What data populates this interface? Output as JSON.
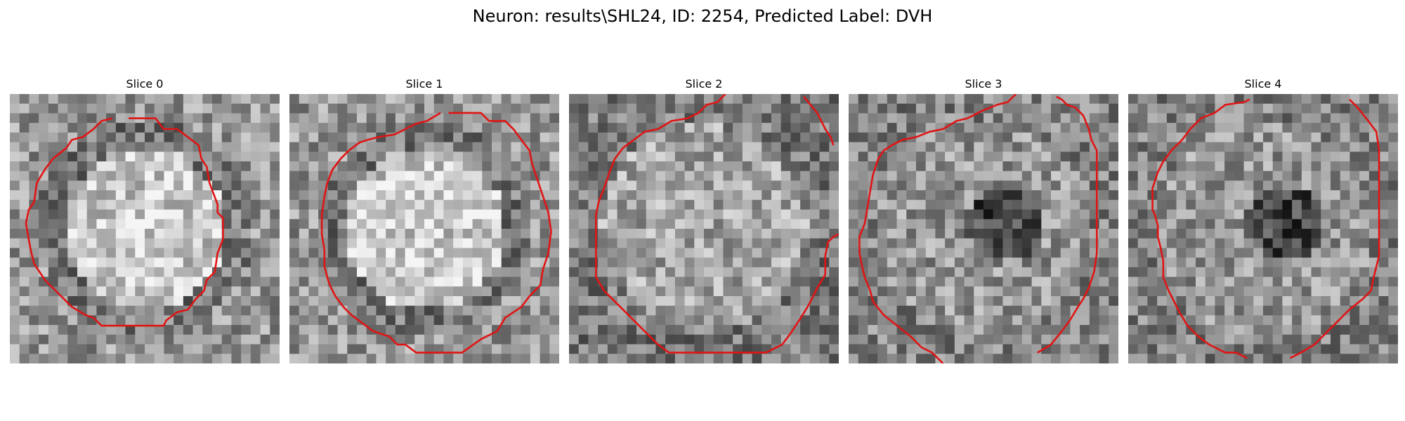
{
  "figure": {
    "title": "Neuron: results\\SHL24, ID: 2254, Predicted Label: DVH",
    "contour_color": "#e01414"
  },
  "panels": [
    {
      "title": "Slice 0",
      "pattern": "bright-center",
      "contour": [
        [
          0.44,
          0.09
        ],
        [
          0.54,
          0.09
        ],
        [
          0.57,
          0.13
        ],
        [
          0.62,
          0.13
        ],
        [
          0.7,
          0.19
        ],
        [
          0.71,
          0.24
        ],
        [
          0.73,
          0.27
        ],
        [
          0.74,
          0.33
        ],
        [
          0.77,
          0.41
        ],
        [
          0.77,
          0.44
        ],
        [
          0.79,
          0.46
        ],
        [
          0.79,
          0.54
        ],
        [
          0.77,
          0.59
        ],
        [
          0.76,
          0.66
        ],
        [
          0.73,
          0.69
        ],
        [
          0.72,
          0.73
        ],
        [
          0.69,
          0.76
        ],
        [
          0.66,
          0.8
        ],
        [
          0.62,
          0.81
        ],
        [
          0.58,
          0.84
        ],
        [
          0.57,
          0.86
        ],
        [
          0.51,
          0.86
        ],
        [
          0.34,
          0.86
        ],
        [
          0.31,
          0.83
        ],
        [
          0.28,
          0.82
        ],
        [
          0.23,
          0.79
        ],
        [
          0.2,
          0.76
        ],
        [
          0.16,
          0.72
        ],
        [
          0.13,
          0.69
        ],
        [
          0.09,
          0.63
        ],
        [
          0.08,
          0.59
        ],
        [
          0.07,
          0.54
        ],
        [
          0.06,
          0.48
        ],
        [
          0.07,
          0.43
        ],
        [
          0.09,
          0.4
        ],
        [
          0.1,
          0.33
        ],
        [
          0.13,
          0.28
        ],
        [
          0.16,
          0.24
        ],
        [
          0.21,
          0.2
        ],
        [
          0.23,
          0.17
        ],
        [
          0.27,
          0.16
        ],
        [
          0.31,
          0.13
        ],
        [
          0.34,
          0.1
        ],
        [
          0.38,
          0.09
        ]
      ]
    },
    {
      "title": "Slice 1",
      "pattern": "bright-center",
      "contour": [
        [
          0.59,
          0.07
        ],
        [
          0.71,
          0.07
        ],
        [
          0.74,
          0.1
        ],
        [
          0.8,
          0.1
        ],
        [
          0.83,
          0.13
        ],
        [
          0.86,
          0.17
        ],
        [
          0.89,
          0.21
        ],
        [
          0.9,
          0.26
        ],
        [
          0.92,
          0.32
        ],
        [
          0.94,
          0.38
        ],
        [
          0.96,
          0.44
        ],
        [
          0.97,
          0.51
        ],
        [
          0.96,
          0.59
        ],
        [
          0.94,
          0.65
        ],
        [
          0.93,
          0.71
        ],
        [
          0.89,
          0.75
        ],
        [
          0.86,
          0.79
        ],
        [
          0.8,
          0.83
        ],
        [
          0.77,
          0.88
        ],
        [
          0.71,
          0.91
        ],
        [
          0.64,
          0.96
        ],
        [
          0.47,
          0.96
        ],
        [
          0.43,
          0.93
        ],
        [
          0.4,
          0.93
        ],
        [
          0.37,
          0.9
        ],
        [
          0.31,
          0.88
        ],
        [
          0.27,
          0.85
        ],
        [
          0.23,
          0.82
        ],
        [
          0.2,
          0.79
        ],
        [
          0.17,
          0.75
        ],
        [
          0.15,
          0.71
        ],
        [
          0.14,
          0.68
        ],
        [
          0.13,
          0.64
        ],
        [
          0.13,
          0.58
        ],
        [
          0.12,
          0.52
        ],
        [
          0.12,
          0.45
        ],
        [
          0.13,
          0.38
        ],
        [
          0.14,
          0.33
        ],
        [
          0.16,
          0.28
        ],
        [
          0.19,
          0.24
        ],
        [
          0.22,
          0.21
        ],
        [
          0.26,
          0.18
        ],
        [
          0.29,
          0.17
        ],
        [
          0.33,
          0.16
        ],
        [
          0.39,
          0.15
        ],
        [
          0.43,
          0.13
        ],
        [
          0.47,
          0.11
        ],
        [
          0.51,
          0.1
        ],
        [
          0.56,
          0.07
        ]
      ]
    },
    {
      "title": "Slice 2",
      "pattern": "mixed",
      "contour": [
        [
          0.58,
          0.0
        ],
        [
          0.55,
          0.03
        ],
        [
          0.51,
          0.04
        ],
        [
          0.48,
          0.07
        ],
        [
          0.44,
          0.09
        ],
        [
          0.38,
          0.1
        ],
        [
          0.33,
          0.13
        ],
        [
          0.28,
          0.14
        ],
        [
          0.24,
          0.17
        ],
        [
          0.2,
          0.2
        ],
        [
          0.17,
          0.24
        ],
        [
          0.15,
          0.29
        ],
        [
          0.13,
          0.35
        ],
        [
          0.11,
          0.4
        ],
        [
          0.1,
          0.45
        ],
        [
          0.1,
          0.52
        ],
        [
          0.1,
          0.6
        ],
        [
          0.1,
          0.68
        ],
        [
          0.13,
          0.73
        ],
        [
          0.17,
          0.77
        ],
        [
          0.21,
          0.81
        ],
        [
          0.25,
          0.85
        ],
        [
          0.29,
          0.89
        ],
        [
          0.33,
          0.93
        ],
        [
          0.37,
          0.96
        ],
        [
          0.42,
          0.96
        ],
        [
          0.73,
          0.96
        ],
        [
          0.79,
          0.93
        ],
        [
          0.82,
          0.89
        ],
        [
          0.86,
          0.83
        ],
        [
          0.89,
          0.78
        ],
        [
          0.92,
          0.72
        ],
        [
          0.95,
          0.67
        ],
        [
          0.95,
          0.6
        ],
        [
          0.96,
          0.55
        ],
        [
          0.98,
          0.53
        ],
        [
          1.0,
          0.52
        ]
      ],
      "contour2": [
        [
          0.87,
          0.01
        ],
        [
          0.92,
          0.07
        ],
        [
          0.95,
          0.13
        ],
        [
          0.97,
          0.16
        ],
        [
          0.98,
          0.19
        ]
      ]
    },
    {
      "title": "Slice 3",
      "pattern": "dark-center",
      "contour": [
        [
          0.7,
          0.96
        ],
        [
          0.75,
          0.93
        ],
        [
          0.79,
          0.88
        ],
        [
          0.82,
          0.84
        ],
        [
          0.85,
          0.79
        ],
        [
          0.87,
          0.76
        ],
        [
          0.89,
          0.72
        ],
        [
          0.91,
          0.66
        ],
        [
          0.92,
          0.59
        ],
        [
          0.92,
          0.5
        ],
        [
          0.92,
          0.4
        ],
        [
          0.92,
          0.3
        ],
        [
          0.92,
          0.21
        ],
        [
          0.9,
          0.17
        ],
        [
          0.89,
          0.13
        ],
        [
          0.87,
          0.08
        ],
        [
          0.84,
          0.05
        ],
        [
          0.81,
          0.04
        ],
        [
          0.79,
          0.02
        ],
        [
          0.77,
          0.01
        ]
      ],
      "contour2": [
        [
          0.62,
          0.0
        ],
        [
          0.59,
          0.03
        ],
        [
          0.55,
          0.04
        ],
        [
          0.5,
          0.06
        ],
        [
          0.44,
          0.09
        ],
        [
          0.4,
          0.1
        ],
        [
          0.35,
          0.13
        ],
        [
          0.3,
          0.14
        ],
        [
          0.25,
          0.16
        ],
        [
          0.2,
          0.17
        ],
        [
          0.16,
          0.19
        ],
        [
          0.13,
          0.21
        ],
        [
          0.11,
          0.24
        ],
        [
          0.1,
          0.27
        ],
        [
          0.09,
          0.3
        ],
        [
          0.08,
          0.36
        ],
        [
          0.07,
          0.42
        ],
        [
          0.06,
          0.48
        ],
        [
          0.04,
          0.53
        ],
        [
          0.04,
          0.59
        ],
        [
          0.05,
          0.64
        ],
        [
          0.06,
          0.68
        ],
        [
          0.08,
          0.73
        ],
        [
          0.09,
          0.77
        ],
        [
          0.13,
          0.82
        ],
        [
          0.18,
          0.86
        ],
        [
          0.23,
          0.9
        ],
        [
          0.27,
          0.94
        ],
        [
          0.31,
          0.96
        ],
        [
          0.35,
          1.0
        ]
      ]
    },
    {
      "title": "Slice 4",
      "pattern": "dark-center",
      "contour": [
        [
          0.45,
          0.02
        ],
        [
          0.43,
          0.03
        ],
        [
          0.36,
          0.04
        ],
        [
          0.32,
          0.07
        ],
        [
          0.27,
          0.09
        ],
        [
          0.23,
          0.13
        ],
        [
          0.2,
          0.17
        ],
        [
          0.16,
          0.21
        ],
        [
          0.13,
          0.25
        ],
        [
          0.11,
          0.29
        ],
        [
          0.1,
          0.32
        ],
        [
          0.09,
          0.35
        ],
        [
          0.09,
          0.4
        ],
        [
          0.09,
          0.43
        ],
        [
          0.1,
          0.45
        ],
        [
          0.11,
          0.49
        ],
        [
          0.11,
          0.53
        ],
        [
          0.12,
          0.57
        ],
        [
          0.13,
          0.62
        ],
        [
          0.13,
          0.68
        ],
        [
          0.15,
          0.73
        ],
        [
          0.17,
          0.77
        ],
        [
          0.19,
          0.81
        ],
        [
          0.22,
          0.86
        ],
        [
          0.26,
          0.9
        ],
        [
          0.3,
          0.93
        ],
        [
          0.36,
          0.96
        ],
        [
          0.4,
          0.96
        ],
        [
          0.44,
          0.98
        ]
      ],
      "contour2": [
        [
          0.6,
          0.98
        ],
        [
          0.64,
          0.96
        ],
        [
          0.69,
          0.93
        ],
        [
          0.73,
          0.89
        ],
        [
          0.78,
          0.84
        ],
        [
          0.82,
          0.8
        ],
        [
          0.87,
          0.76
        ],
        [
          0.9,
          0.73
        ],
        [
          0.91,
          0.68
        ],
        [
          0.92,
          0.64
        ],
        [
          0.93,
          0.6
        ],
        [
          0.93,
          0.5
        ],
        [
          0.93,
          0.4
        ],
        [
          0.93,
          0.3
        ],
        [
          0.93,
          0.21
        ],
        [
          0.92,
          0.14
        ],
        [
          0.89,
          0.1
        ],
        [
          0.85,
          0.05
        ],
        [
          0.82,
          0.02
        ]
      ]
    }
  ]
}
